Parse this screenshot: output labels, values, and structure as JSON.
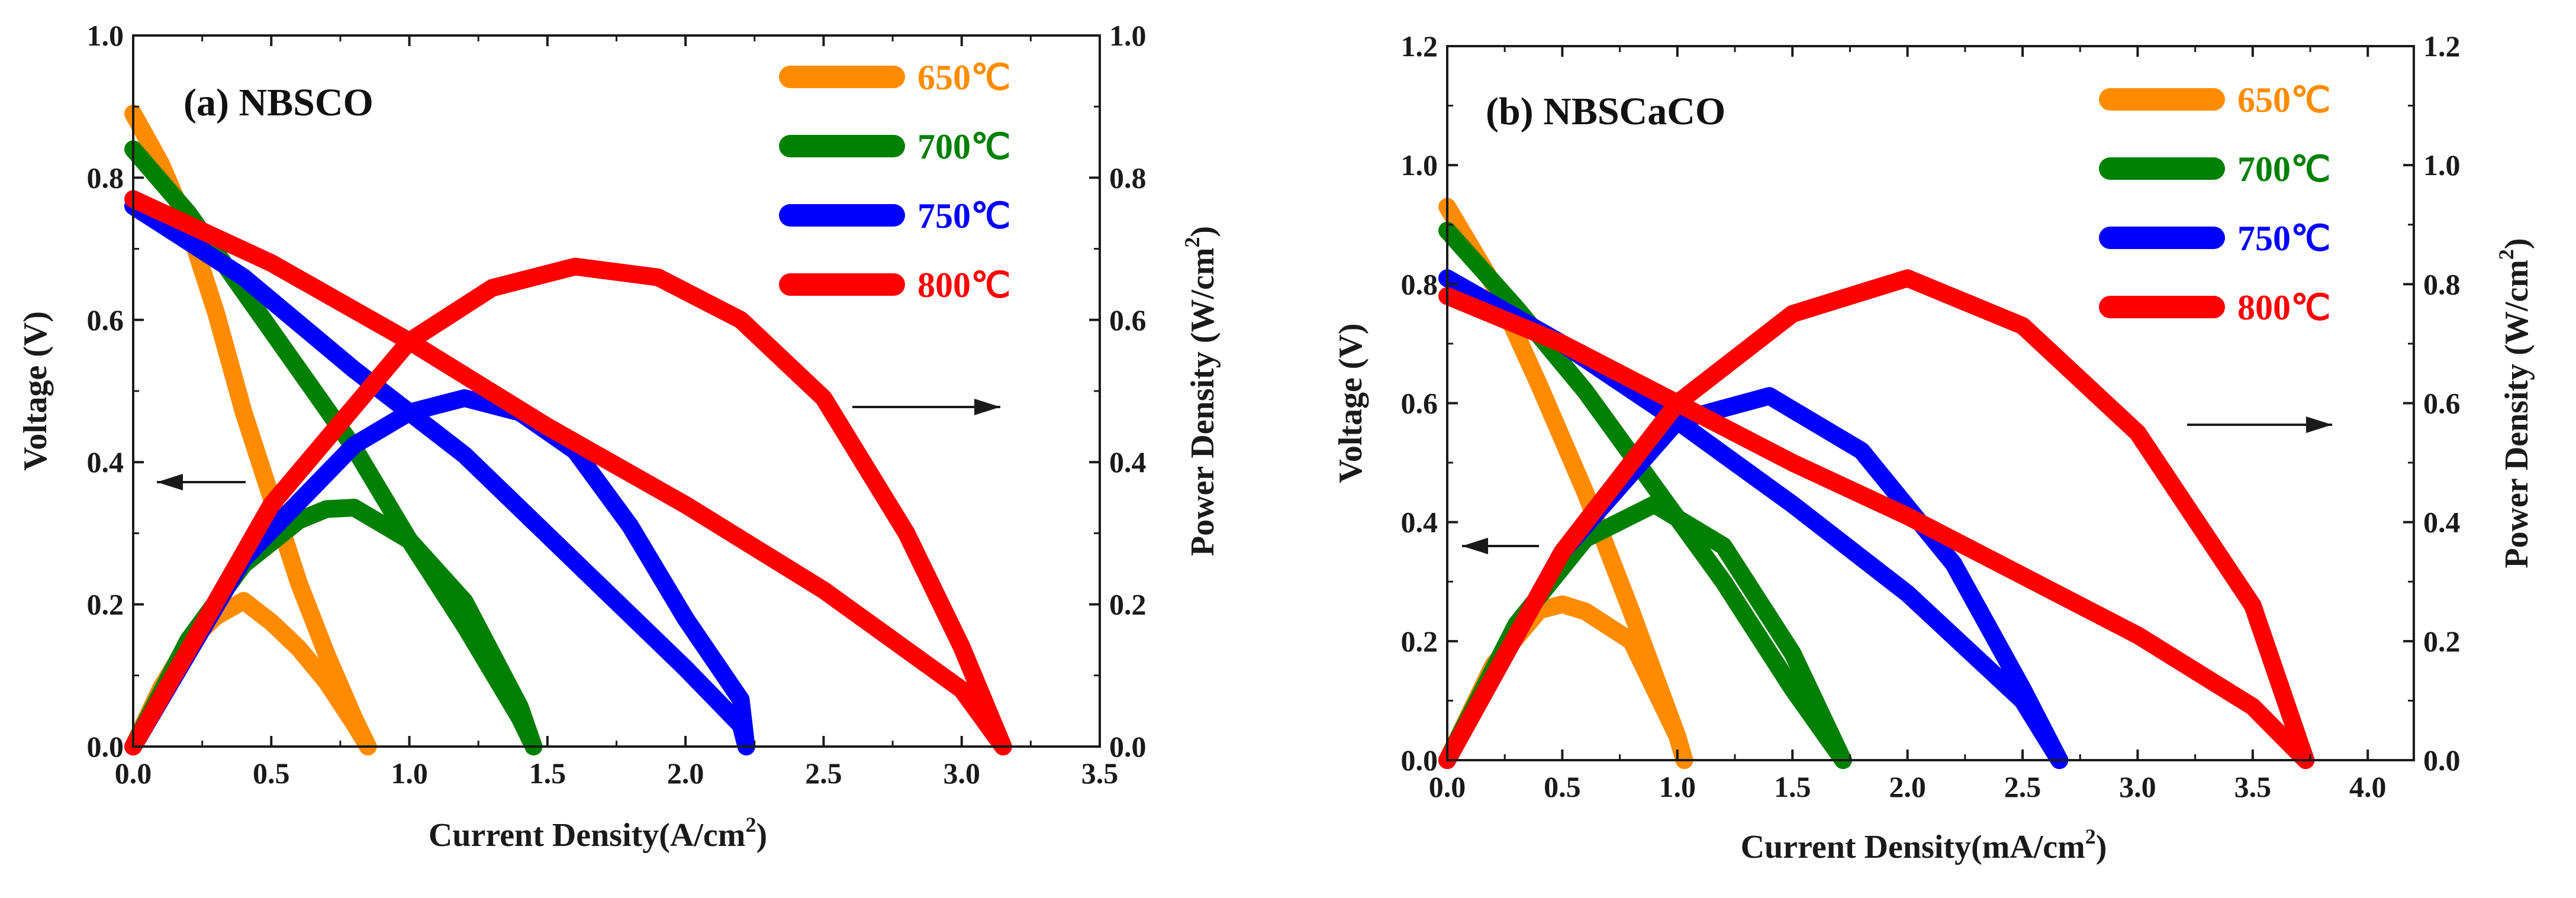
{
  "chart_data": [
    {
      "type": "line",
      "title": "(a)  NBSCO",
      "xlabel": "Current Density(A/cm",
      "xlabel_sup": "2",
      "xlabel_end": ")",
      "ylabel": "Voltage (V)",
      "y2label": "Power Density (W/cm",
      "y2label_sup": "2",
      "y2label_end": ")",
      "xlim": [
        0,
        3.5
      ],
      "ylim": [
        0,
        1.0
      ],
      "y2lim": [
        0,
        1.0
      ],
      "x_ticks": [
        "0.0",
        "0.5",
        "1.0",
        "1.5",
        "2.0",
        "2.5",
        "3.0",
        "3.5"
      ],
      "y_ticks": [
        "0.0",
        "0.2",
        "0.4",
        "0.6",
        "0.8",
        "1.0"
      ],
      "y2_ticks": [
        "0.0",
        "0.2",
        "0.4",
        "0.6",
        "0.8",
        "1.0"
      ],
      "series": [
        {
          "name": "650℃",
          "color": "#FF8C00",
          "voltage": {
            "x": [
              0,
              0.1,
              0.2,
              0.3,
              0.4,
              0.5,
              0.6,
              0.7,
              0.8,
              0.85
            ],
            "y": [
              0.89,
              0.82,
              0.73,
              0.61,
              0.47,
              0.35,
              0.23,
              0.13,
              0.04,
              0.0
            ]
          },
          "power": {
            "x": [
              0,
              0.1,
              0.2,
              0.3,
              0.4,
              0.5,
              0.6,
              0.7,
              0.8,
              0.85
            ],
            "y": [
              0,
              0.082,
              0.146,
              0.183,
              0.205,
              0.175,
              0.138,
              0.091,
              0.032,
              0.0
            ]
          }
        },
        {
          "name": "700℃",
          "color": "#008000",
          "voltage": {
            "x": [
              0,
              0.2,
              0.4,
              0.6,
              0.8,
              1.0,
              1.2,
              1.4,
              1.45
            ],
            "y": [
              0.84,
              0.75,
              0.64,
              0.53,
              0.42,
              0.29,
              0.17,
              0.04,
              0.0
            ]
          },
          "power": {
            "x": [
              0,
              0.2,
              0.4,
              0.6,
              0.7,
              0.8,
              1.0,
              1.2,
              1.4,
              1.45
            ],
            "y": [
              0,
              0.15,
              0.256,
              0.318,
              0.334,
              0.336,
              0.29,
              0.204,
              0.056,
              0.0
            ]
          }
        },
        {
          "name": "750℃",
          "color": "#0000FF",
          "voltage": {
            "x": [
              0,
              0.4,
              0.8,
              1.2,
              1.6,
              2.0,
              2.2,
              2.22
            ],
            "y": [
              0.76,
              0.66,
              0.53,
              0.41,
              0.26,
              0.11,
              0.03,
              0.0
            ]
          },
          "power": {
            "x": [
              0,
              0.4,
              0.8,
              1.0,
              1.2,
              1.4,
              1.6,
              1.8,
              2.0,
              2.2,
              2.22
            ],
            "y": [
              0,
              0.264,
              0.424,
              0.47,
              0.49,
              0.47,
              0.416,
              0.31,
              0.18,
              0.066,
              0.0
            ]
          }
        },
        {
          "name": "800℃",
          "color": "#FF0000",
          "voltage": {
            "x": [
              0,
              0.5,
              1.0,
              1.5,
              2.0,
              2.5,
              3.0,
              3.15
            ],
            "y": [
              0.77,
              0.68,
              0.57,
              0.45,
              0.34,
              0.22,
              0.08,
              0.0
            ]
          },
          "power": {
            "x": [
              0,
              0.5,
              1.0,
              1.3,
              1.6,
              1.9,
              2.2,
              2.5,
              2.8,
              3.0,
              3.15
            ],
            "y": [
              0,
              0.34,
              0.57,
              0.645,
              0.675,
              0.66,
              0.6,
              0.49,
              0.3,
              0.14,
              0.0
            ]
          }
        }
      ]
    },
    {
      "type": "line",
      "title": "(b)  NBSCaCO",
      "xlabel": "Current Density(mA/cm",
      "xlabel_sup": "2",
      "xlabel_end": ")",
      "ylabel": "Voltage (V)",
      "y2label": "Power Density (W/cm",
      "y2label_sup": "2",
      "y2label_end": ")",
      "xlim": [
        0,
        4.2
      ],
      "ylim": [
        0,
        1.2
      ],
      "y2lim": [
        0,
        1.2
      ],
      "x_ticks": [
        "0.0",
        "0.5",
        "1.0",
        "1.5",
        "2.0",
        "2.5",
        "3.0",
        "3.5",
        "4.0"
      ],
      "y_ticks": [
        "0.0",
        "0.2",
        "0.4",
        "0.6",
        "0.8",
        "1.0",
        "1.2"
      ],
      "y2_ticks": [
        "0.0",
        "0.2",
        "0.4",
        "0.6",
        "0.8",
        "1.0",
        "1.2"
      ],
      "series": [
        {
          "name": "650℃",
          "color": "#FF8C00",
          "voltage": {
            "x": [
              0,
              0.2,
              0.4,
              0.6,
              0.8,
              1.0,
              1.03
            ],
            "y": [
              0.93,
              0.8,
              0.63,
              0.45,
              0.25,
              0.04,
              0.0
            ]
          },
          "power": {
            "x": [
              0,
              0.2,
              0.4,
              0.5,
              0.6,
              0.8,
              1.0,
              1.03
            ],
            "y": [
              0,
              0.16,
              0.252,
              0.262,
              0.25,
              0.2,
              0.04,
              0.0
            ]
          }
        },
        {
          "name": "700℃",
          "color": "#008000",
          "voltage": {
            "x": [
              0,
              0.3,
              0.6,
              0.9,
              1.2,
              1.5,
              1.72
            ],
            "y": [
              0.89,
              0.76,
              0.62,
              0.46,
              0.3,
              0.12,
              0.0
            ]
          },
          "power": {
            "x": [
              0,
              0.3,
              0.6,
              0.9,
              1.2,
              1.5,
              1.72
            ],
            "y": [
              0,
              0.228,
              0.372,
              0.43,
              0.36,
              0.18,
              0.0
            ]
          }
        },
        {
          "name": "750℃",
          "color": "#0000FF",
          "voltage": {
            "x": [
              0,
              0.5,
              1.0,
              1.5,
              2.0,
              2.5,
              2.66
            ],
            "y": [
              0.81,
              0.7,
              0.57,
              0.43,
              0.28,
              0.1,
              0.0
            ]
          },
          "power": {
            "x": [
              0,
              0.5,
              1.0,
              1.4,
              1.8,
              2.2,
              2.5,
              2.66
            ],
            "y": [
              0,
              0.35,
              0.57,
              0.612,
              0.52,
              0.33,
              0.12,
              0.0
            ]
          }
        },
        {
          "name": "800℃",
          "color": "#FF0000",
          "voltage": {
            "x": [
              0,
              0.5,
              1.0,
              1.5,
              2.0,
              2.5,
              3.0,
              3.5,
              3.73
            ],
            "y": [
              0.78,
              0.7,
              0.6,
              0.5,
              0.41,
              0.31,
              0.21,
              0.09,
              0.0
            ]
          },
          "power": {
            "x": [
              0,
              0.5,
              1.0,
              1.5,
              2.0,
              2.5,
              3.0,
              3.5,
              3.73
            ],
            "y": [
              0,
              0.35,
              0.6,
              0.75,
              0.81,
              0.73,
              0.55,
              0.26,
              0.0
            ]
          }
        }
      ]
    }
  ]
}
